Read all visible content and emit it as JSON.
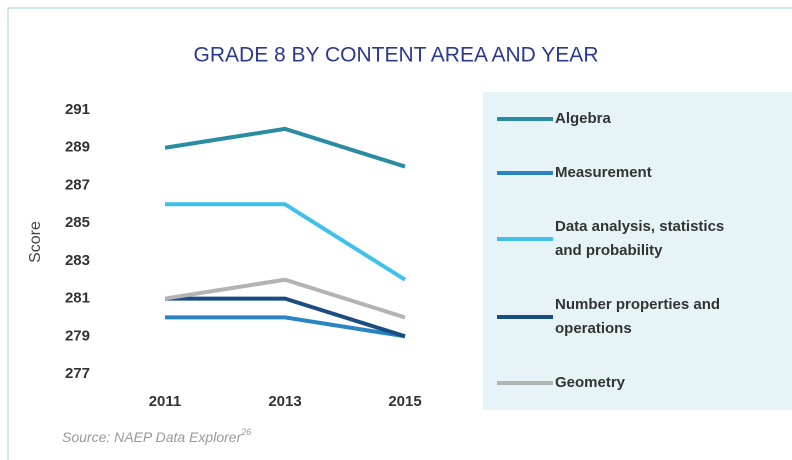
{
  "chart_data": {
    "type": "line",
    "title": "GRADE 8 BY CONTENT AREA AND YEAR",
    "y_label": "Score",
    "categories": [
      "2011",
      "2013",
      "2015"
    ],
    "series": [
      {
        "name": "Algebra",
        "color": "#2a8ca3",
        "values": [
          289,
          290,
          288
        ]
      },
      {
        "name": "Measurement",
        "color": "#2b84c2",
        "values": [
          280,
          280,
          279
        ]
      },
      {
        "name": "Data analysis, statistics and probability",
        "color": "#3fc1ec",
        "values": [
          286,
          286,
          282
        ]
      },
      {
        "name": "Number properties and operations",
        "color": "#1a4d7f",
        "values": [
          281,
          281,
          279
        ]
      },
      {
        "name": "Geometry",
        "color": "#b3b3b3",
        "values": [
          281,
          282,
          280
        ]
      }
    ],
    "ylim": [
      277,
      291
    ],
    "yticks": [
      277,
      279,
      281,
      283,
      285,
      287,
      289,
      291
    ],
    "grid": false,
    "source": "Source: NAEP Data Explorer",
    "source_ref": "26"
  }
}
